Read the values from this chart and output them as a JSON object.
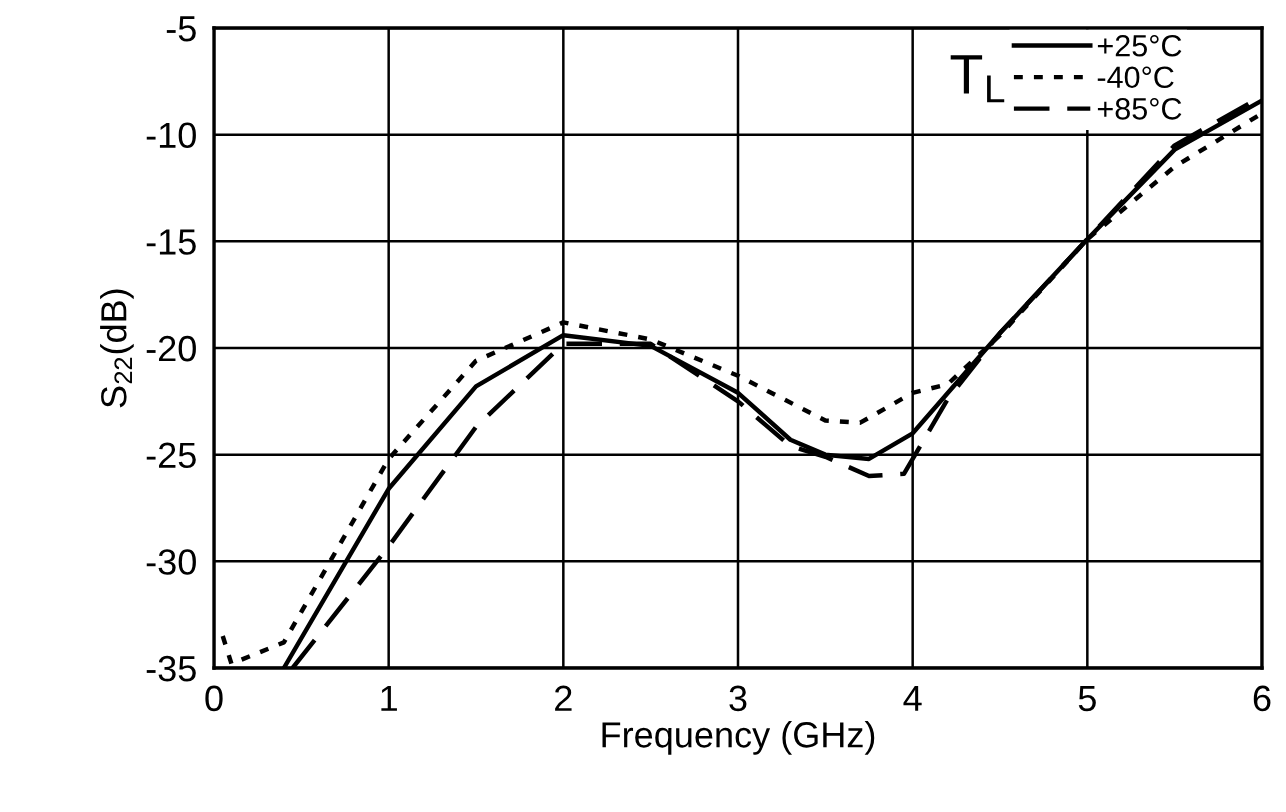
{
  "chart_data": {
    "type": "line",
    "xlabel": "Frequency (GHz)",
    "ylabel": "S$_{22}$(dB)",
    "legend_title": "T$_{L}$",
    "xlim": [
      0,
      6
    ],
    "xticks": [
      0,
      1,
      2,
      3,
      4,
      5,
      6
    ],
    "ylim": [
      -35,
      -5
    ],
    "yticks": [
      -35,
      -30,
      -25,
      -20,
      -15,
      -10,
      -5
    ],
    "grid": true,
    "legend": "top right",
    "series": [
      {
        "name": "+25°C",
        "color": "#000000",
        "line_style": "solid",
        "x": [
          0.4,
          1,
          1.5,
          2,
          2.5,
          3,
          3.3,
          3.5,
          3.75,
          4,
          4.5,
          5,
          5.5,
          6
        ],
        "values": [
          -35,
          -26.6,
          -21.8,
          -19.4,
          -19.9,
          -22.1,
          -24.3,
          -25.0,
          -25.2,
          -24.0,
          -19.3,
          -14.9,
          -10.7,
          -8.4
        ]
      },
      {
        "name": "-40°C",
        "color": "#000000",
        "line_style": "dotted",
        "x": [
          0.05,
          0.1,
          0.4,
          1,
          1.5,
          2,
          2.5,
          3,
          3.5,
          3.7,
          4,
          4.2,
          4.5,
          5,
          5.5,
          6
        ],
        "values": [
          -33.5,
          -34.8,
          -33.8,
          -25.2,
          -20.6,
          -18.8,
          -19.6,
          -21.3,
          -23.4,
          -23.5,
          -22.1,
          -21.7,
          -19.4,
          -14.9,
          -11.5,
          -9.0
        ]
      },
      {
        "name": "+85°C",
        "color": "#000000",
        "line_style": "dashed",
        "x": [
          0.45,
          1,
          1.5,
          2,
          2.5,
          3,
          3.3,
          3.5,
          3.75,
          3.95,
          4.2,
          4.5,
          5,
          5.5,
          6
        ],
        "values": [
          -35,
          -29.3,
          -23.7,
          -19.8,
          -19.8,
          -22.5,
          -24.6,
          -25.1,
          -26.0,
          -25.9,
          -22.4,
          -19.3,
          -14.9,
          -10.5,
          -8.2
        ]
      }
    ]
  }
}
